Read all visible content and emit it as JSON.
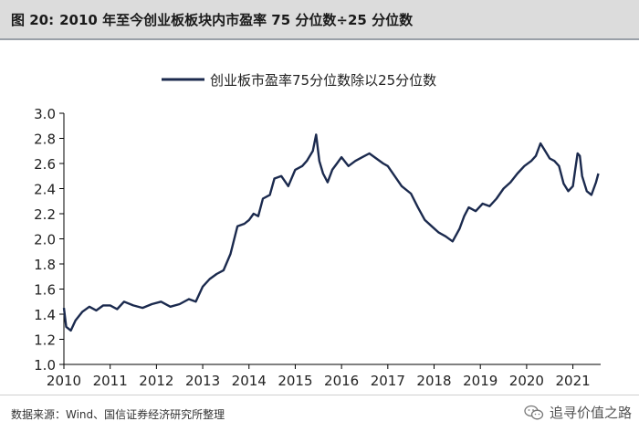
{
  "header": {
    "figure_label": "图 20:",
    "title": "2010 年至今创业板板块内市盈率 75 分位数÷25 分位数"
  },
  "footer": {
    "source": "数据来源：Wind、国信证券经济研究所整理",
    "watermark": "追寻价值之路"
  },
  "colors": {
    "series": "#1b2a4e",
    "header_bg": "#dcdcdc",
    "axis": "#000000"
  },
  "chart_data": {
    "type": "line",
    "title": "",
    "xlabel": "",
    "ylabel": "",
    "legend_position": "top-center",
    "grid": false,
    "xlim": [
      2010.0,
      2021.6
    ],
    "ylim": [
      1.0,
      3.0
    ],
    "x_ticks": [
      "2010",
      "2011",
      "2012",
      "2013",
      "2014",
      "2015",
      "2016",
      "2017",
      "2018",
      "2019",
      "2020",
      "2021"
    ],
    "y_ticks": [
      "1.0",
      "1.2",
      "1.4",
      "1.6",
      "1.8",
      "2.0",
      "2.2",
      "2.4",
      "2.6",
      "2.8",
      "3.0"
    ],
    "series": [
      {
        "name": "创业板市盈率75分位数除以25分位数",
        "color": "#1b2a4e",
        "points": [
          [
            2010.0,
            1.45
          ],
          [
            2010.05,
            1.3
          ],
          [
            2010.15,
            1.27
          ],
          [
            2010.25,
            1.35
          ],
          [
            2010.4,
            1.42
          ],
          [
            2010.55,
            1.46
          ],
          [
            2010.7,
            1.43
          ],
          [
            2010.85,
            1.47
          ],
          [
            2011.0,
            1.47
          ],
          [
            2011.15,
            1.44
          ],
          [
            2011.3,
            1.5
          ],
          [
            2011.5,
            1.47
          ],
          [
            2011.7,
            1.45
          ],
          [
            2011.9,
            1.48
          ],
          [
            2012.1,
            1.5
          ],
          [
            2012.3,
            1.46
          ],
          [
            2012.5,
            1.48
          ],
          [
            2012.7,
            1.52
          ],
          [
            2012.85,
            1.5
          ],
          [
            2013.0,
            1.62
          ],
          [
            2013.15,
            1.68
          ],
          [
            2013.3,
            1.72
          ],
          [
            2013.45,
            1.75
          ],
          [
            2013.6,
            1.88
          ],
          [
            2013.75,
            2.1
          ],
          [
            2013.9,
            2.12
          ],
          [
            2014.0,
            2.15
          ],
          [
            2014.1,
            2.2
          ],
          [
            2014.2,
            2.18
          ],
          [
            2014.3,
            2.32
          ],
          [
            2014.45,
            2.35
          ],
          [
            2014.55,
            2.48
          ],
          [
            2014.7,
            2.5
          ],
          [
            2014.85,
            2.42
          ],
          [
            2015.0,
            2.55
          ],
          [
            2015.15,
            2.58
          ],
          [
            2015.25,
            2.62
          ],
          [
            2015.38,
            2.7
          ],
          [
            2015.45,
            2.83
          ],
          [
            2015.52,
            2.62
          ],
          [
            2015.6,
            2.52
          ],
          [
            2015.7,
            2.45
          ],
          [
            2015.8,
            2.55
          ],
          [
            2015.9,
            2.6
          ],
          [
            2016.0,
            2.65
          ],
          [
            2016.15,
            2.58
          ],
          [
            2016.3,
            2.62
          ],
          [
            2016.45,
            2.65
          ],
          [
            2016.6,
            2.68
          ],
          [
            2016.75,
            2.64
          ],
          [
            2016.9,
            2.6
          ],
          [
            2017.0,
            2.58
          ],
          [
            2017.15,
            2.5
          ],
          [
            2017.3,
            2.42
          ],
          [
            2017.5,
            2.36
          ],
          [
            2017.65,
            2.25
          ],
          [
            2017.8,
            2.15
          ],
          [
            2017.95,
            2.1
          ],
          [
            2018.1,
            2.05
          ],
          [
            2018.25,
            2.02
          ],
          [
            2018.4,
            1.98
          ],
          [
            2018.55,
            2.08
          ],
          [
            2018.65,
            2.18
          ],
          [
            2018.75,
            2.25
          ],
          [
            2018.9,
            2.22
          ],
          [
            2019.05,
            2.28
          ],
          [
            2019.2,
            2.26
          ],
          [
            2019.35,
            2.32
          ],
          [
            2019.5,
            2.4
          ],
          [
            2019.65,
            2.45
          ],
          [
            2019.8,
            2.52
          ],
          [
            2019.95,
            2.58
          ],
          [
            2020.1,
            2.62
          ],
          [
            2020.2,
            2.66
          ],
          [
            2020.3,
            2.76
          ],
          [
            2020.4,
            2.7
          ],
          [
            2020.5,
            2.64
          ],
          [
            2020.6,
            2.62
          ],
          [
            2020.7,
            2.58
          ],
          [
            2020.8,
            2.44
          ],
          [
            2020.9,
            2.38
          ],
          [
            2021.0,
            2.42
          ],
          [
            2021.05,
            2.55
          ],
          [
            2021.1,
            2.68
          ],
          [
            2021.15,
            2.66
          ],
          [
            2021.2,
            2.5
          ],
          [
            2021.3,
            2.38
          ],
          [
            2021.4,
            2.35
          ],
          [
            2021.5,
            2.45
          ],
          [
            2021.55,
            2.52
          ]
        ]
      }
    ]
  }
}
